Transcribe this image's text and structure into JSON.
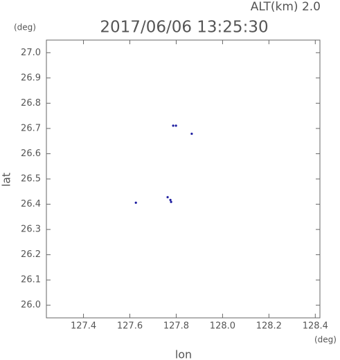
{
  "chart_data": {
    "type": "scatter",
    "title": "2017/06/06 13:25:30",
    "annotation": "ALT(km) 2.0",
    "x_label": "lon",
    "y_label": "lat",
    "x_unit": "(deg)",
    "y_unit": "(deg)",
    "xlim": [
      127.24,
      128.42
    ],
    "xticks": [
      127.4,
      127.6,
      {
        "value": 127.8,
        "label": "127.8"
      },
      {
        "value": 128,
        "label": "128.0"
      },
      128.2,
      128.4
    ],
    "ylim": [
      25.95,
      27.05
    ],
    "yticks": [
      {
        "value": 26,
        "label": "26.0"
      },
      26.1,
      26.2,
      26.3,
      26.4,
      26.5,
      26.6,
      26.7,
      26.8,
      26.9,
      {
        "value": 27,
        "label": "27.0"
      }
    ],
    "series": [
      {
        "color": "#1c1ca0",
        "x": [
          127.787,
          127.799,
          127.867,
          127.626,
          127.763,
          127.775,
          127.778
        ],
        "values": [
          26.711,
          26.711,
          26.679,
          26.406,
          26.428,
          26.417,
          26.409
        ]
      }
    ]
  }
}
